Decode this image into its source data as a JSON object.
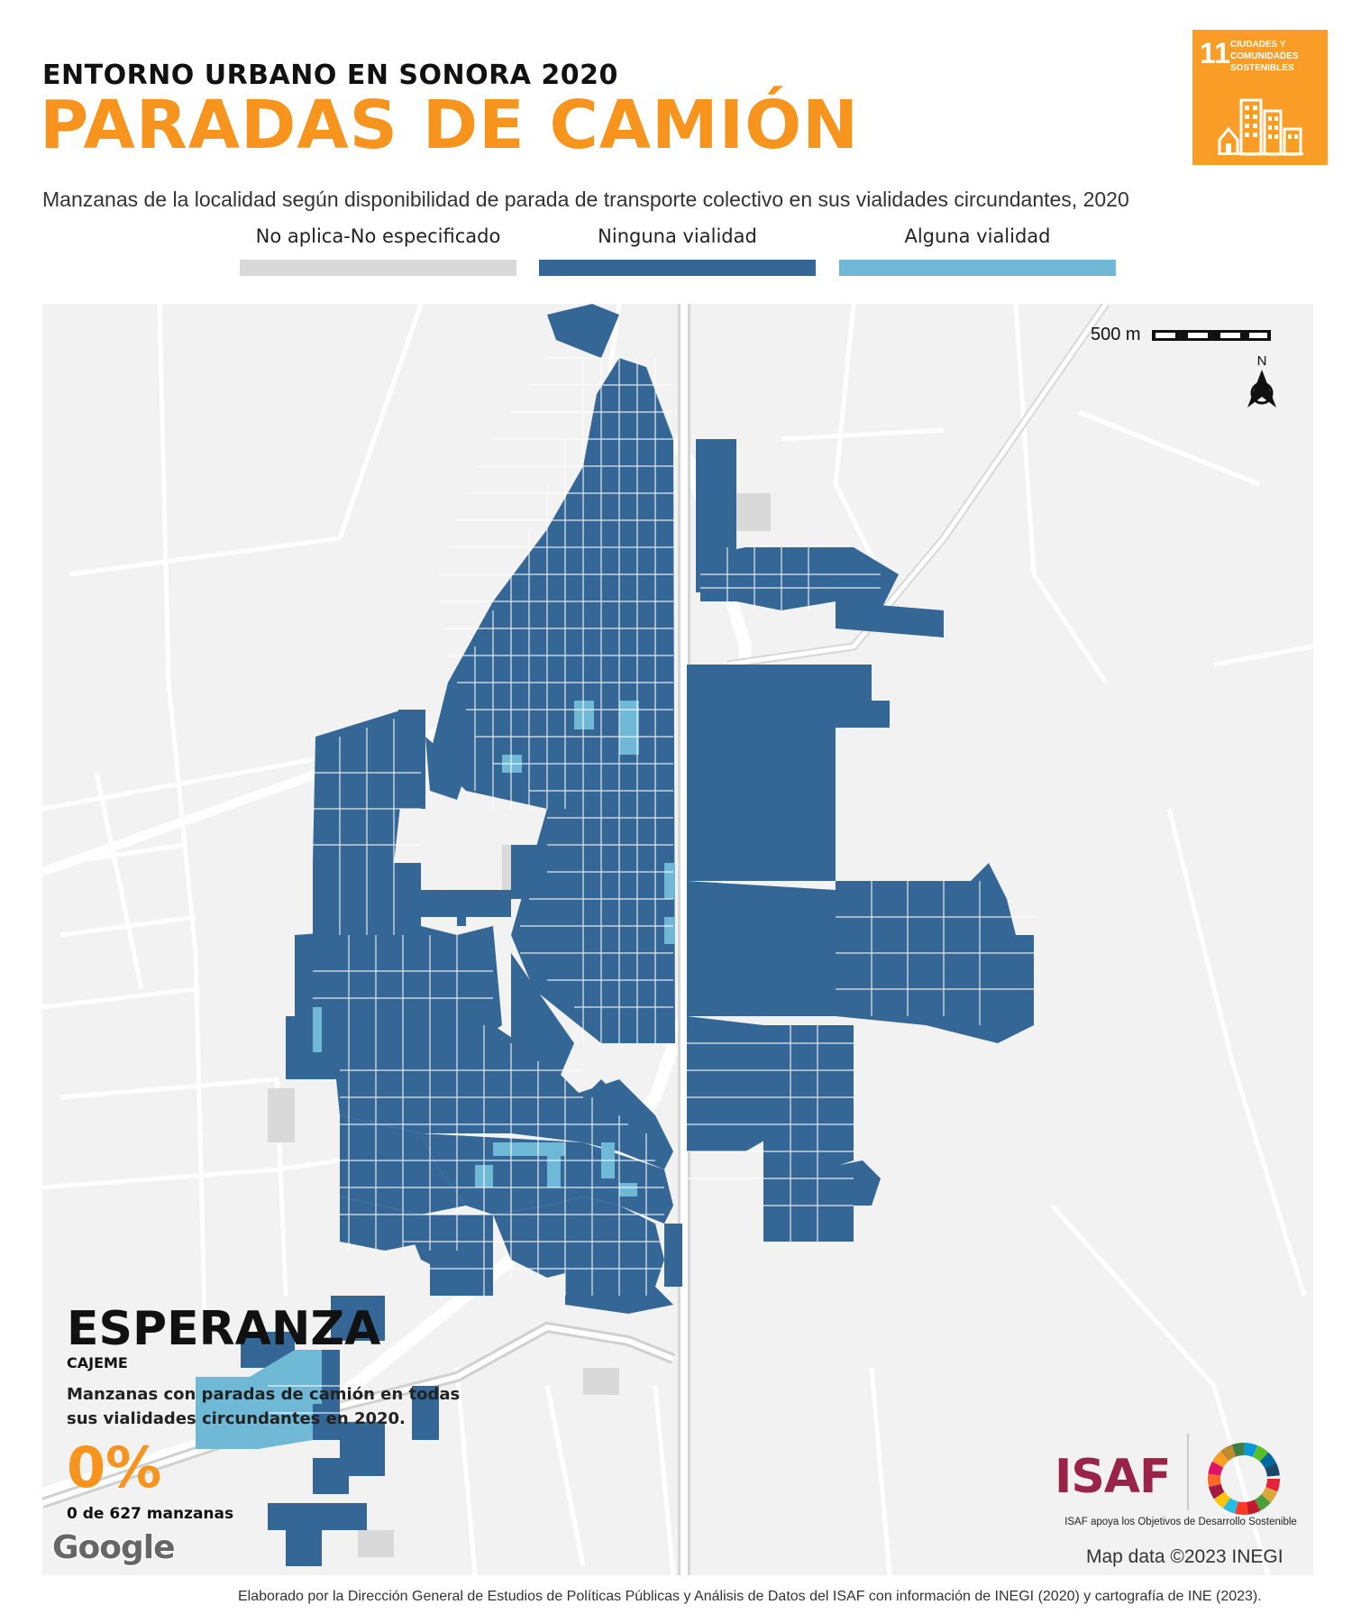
{
  "header": {
    "pretitle": "ENTORNO URBANO EN SONORA 2020",
    "title": "PARADAS DE CAMIÓN",
    "subtitle": "Manzanas de la localidad según disponibilidad de parada de transporte colectivo en sus vialidades circundantes, 2020"
  },
  "sdg_badge": {
    "number": "11",
    "text": "CIUDADES Y COMUNIDADES SOSTENIBLES",
    "color": "#f99d26"
  },
  "legend": [
    {
      "label": "No aplica-No especificado",
      "color": "#d9d9d9"
    },
    {
      "label": "Ninguna vialidad",
      "color": "#356796"
    },
    {
      "label": "Alguna vialidad",
      "color": "#6fb9d6"
    }
  ],
  "map": {
    "scale_label": "500 m",
    "north_label": "N",
    "google_logo": "Google",
    "attribution": "Map data ©2023 INEGI"
  },
  "info": {
    "locality": "ESPERANZA",
    "municipality": "CAJEME",
    "description": "Manzanas con paradas de camión en todas sus vialidades circundantes en 2020.",
    "percentage": "0%",
    "count": "0 de 627 manzanas"
  },
  "isaf": {
    "logo": "ISAF",
    "tagline": "ISAF apoya los Objetivos de Desarrollo Sostenible"
  },
  "footer": "Elaborado por la Dirección General de Estudios de Políticas Públicas y Análisis de Datos del ISAF con información de INEGI (2020) y cartografía de INE (2023).",
  "colors": {
    "accent": "#f7941d",
    "ninguna": "#356796",
    "alguna": "#6fb9d6",
    "na": "#d9d9d9"
  }
}
